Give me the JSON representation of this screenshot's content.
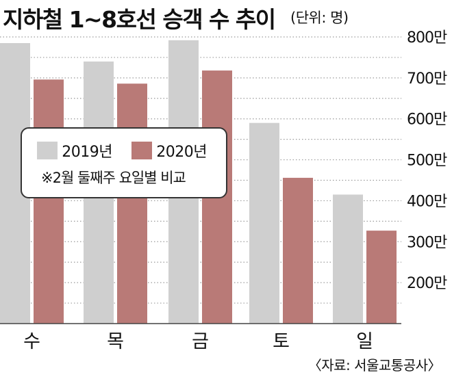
{
  "title": "지하철 1~8호선 승객 수 추이",
  "unit_note": "(단위: 명)",
  "source": "〈자료: 서울교통공사〉",
  "colors": {
    "s2019": "#cfcfcf",
    "s2020": "#b97a77",
    "grid": "#9a9a9a"
  },
  "legend": {
    "note": "※2월 둘째주 요일별 비교"
  },
  "chart_data": {
    "type": "bar",
    "categories": [
      "수",
      "목",
      "금",
      "토",
      "일"
    ],
    "series": [
      {
        "name": "2019년",
        "values": [
          785,
          740,
          792,
          590,
          415
        ]
      },
      {
        "name": "2020년",
        "values": [
          696,
          686,
          718,
          456,
          327
        ]
      }
    ],
    "y_ticks": [
      "800만",
      "700만",
      "600만",
      "500만",
      "400만",
      "300만",
      "200만"
    ],
    "y_tick_values": [
      800,
      700,
      600,
      500,
      400,
      300,
      200
    ],
    "ylim": [
      100,
      800
    ],
    "grid": true,
    "legend_position": "left-middle"
  }
}
